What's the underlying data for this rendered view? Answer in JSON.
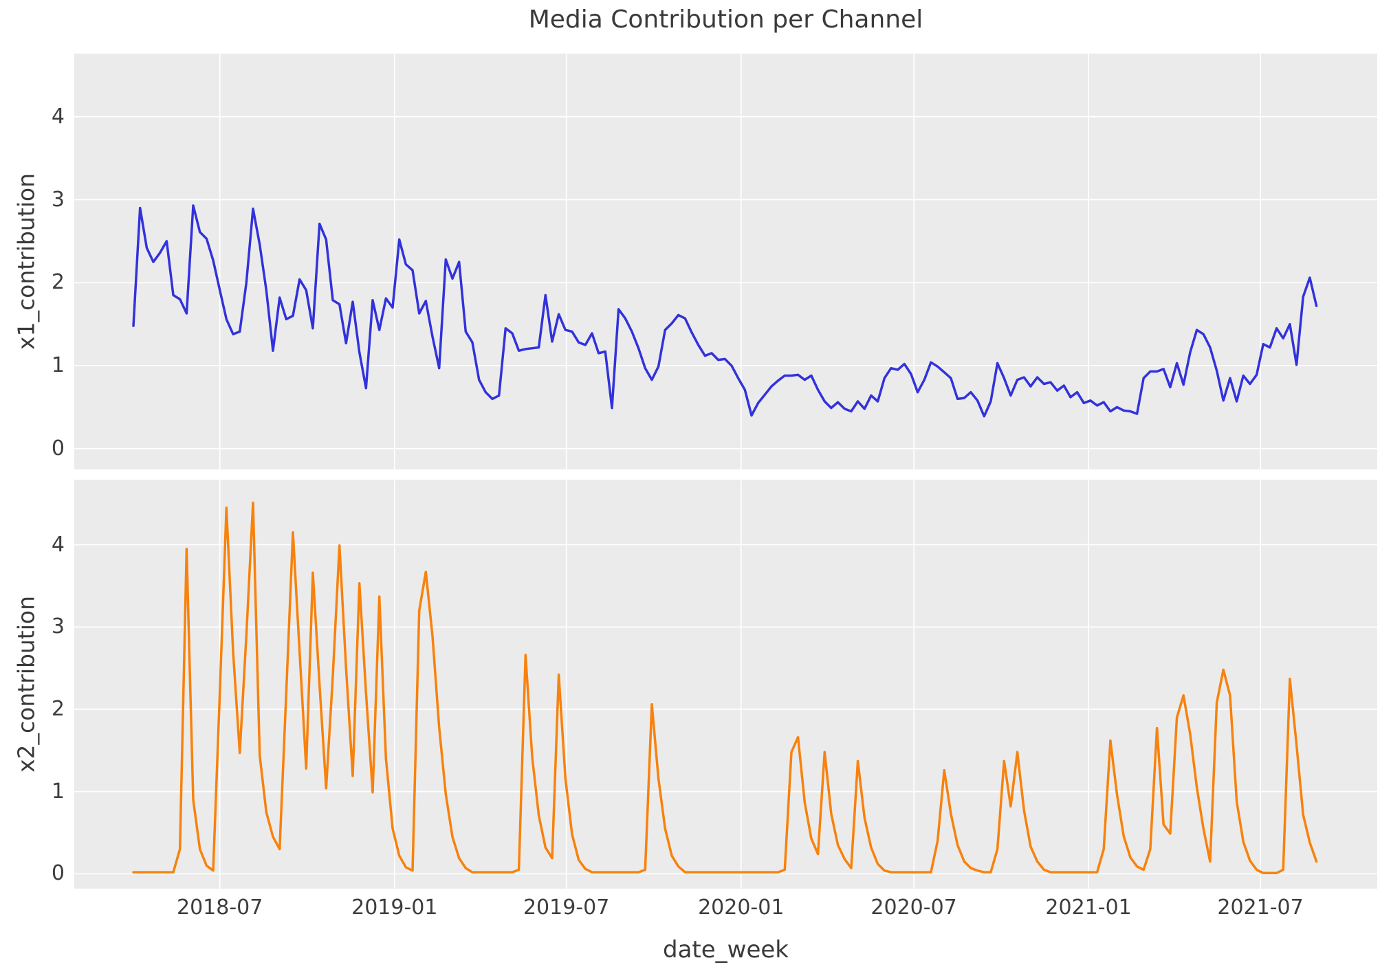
{
  "title": "Media Contribution per Channel",
  "x_axis": {
    "label": "date_week",
    "tick_labels": [
      "2018-07",
      "2019-01",
      "2019-07",
      "2020-01",
      "2020-07",
      "2021-01",
      "2021-07"
    ]
  },
  "chart_data": {
    "type": "line",
    "title": "Media Contribution per Channel",
    "xlabel": "date_week",
    "x_start": "2018-04-01",
    "x_end": "2021-08-29",
    "x_freq": "weekly",
    "n_points": 179,
    "grid": true,
    "background_color": "#ebebeb",
    "gridline_color": "#ffffff",
    "x_tick_labels": [
      "2018-07",
      "2019-01",
      "2019-07",
      "2020-01",
      "2020-07",
      "2021-01",
      "2021-07"
    ],
    "x_tick_week_index": [
      13.0,
      39.29,
      65.14,
      91.43,
      117.43,
      143.71,
      169.57
    ],
    "x_week_range": [
      -8.9,
      187.15
    ],
    "subplots": [
      {
        "ylabel": "x1_contribution",
        "yticks": [
          0,
          1,
          2,
          3,
          4
        ],
        "ylim": [
          -0.25,
          4.76
        ]
      },
      {
        "ylabel": "x2_contribution",
        "yticks": [
          0,
          1,
          2,
          3,
          4
        ],
        "ylim": [
          -0.18,
          4.79
        ]
      }
    ],
    "series": [
      {
        "name": "x1_contribution",
        "color": "#3232dc",
        "values": [
          1.48,
          2.9,
          2.42,
          2.25,
          2.36,
          2.5,
          1.85,
          1.8,
          1.63,
          2.93,
          2.61,
          2.53,
          2.27,
          1.91,
          1.56,
          1.38,
          1.41,
          2.0,
          2.89,
          2.46,
          1.91,
          1.18,
          1.82,
          1.56,
          1.6,
          2.04,
          1.91,
          1.45,
          2.71,
          2.52,
          1.79,
          1.74,
          1.27,
          1.77,
          1.16,
          0.73,
          1.79,
          1.43,
          1.81,
          1.7,
          2.52,
          2.22,
          2.15,
          1.63,
          1.78,
          1.35,
          0.97,
          2.28,
          2.05,
          2.25,
          1.41,
          1.28,
          0.83,
          0.68,
          0.6,
          0.64,
          1.45,
          1.39,
          1.18,
          1.2,
          1.21,
          1.22,
          1.85,
          1.29,
          1.62,
          1.43,
          1.41,
          1.28,
          1.25,
          1.39,
          1.15,
          1.17,
          0.49,
          1.68,
          1.57,
          1.41,
          1.21,
          0.97,
          0.83,
          0.99,
          1.43,
          1.51,
          1.61,
          1.57,
          1.4,
          1.25,
          1.12,
          1.15,
          1.07,
          1.08,
          1.0,
          0.85,
          0.71,
          0.4,
          0.55,
          0.65,
          0.75,
          0.82,
          0.88,
          0.88,
          0.89,
          0.83,
          0.88,
          0.71,
          0.57,
          0.49,
          0.56,
          0.48,
          0.45,
          0.57,
          0.48,
          0.64,
          0.57,
          0.85,
          0.97,
          0.95,
          1.02,
          0.9,
          0.68,
          0.83,
          1.04,
          0.99,
          0.92,
          0.85,
          0.6,
          0.61,
          0.68,
          0.58,
          0.39,
          0.57,
          1.03,
          0.85,
          0.64,
          0.83,
          0.86,
          0.75,
          0.86,
          0.78,
          0.8,
          0.7,
          0.76,
          0.62,
          0.68,
          0.55,
          0.58,
          0.52,
          0.56,
          0.45,
          0.5,
          0.46,
          0.45,
          0.42,
          0.85,
          0.93,
          0.93,
          0.96,
          0.74,
          1.03,
          0.77,
          1.16,
          1.43,
          1.38,
          1.22,
          0.94,
          0.58,
          0.85,
          0.57,
          0.88,
          0.78,
          0.89,
          1.26,
          1.22,
          1.45,
          1.33,
          1.5,
          1.01,
          1.83,
          2.06,
          1.72
        ]
      },
      {
        "name": "x2_contribution",
        "color": "#f7820d",
        "values": [
          0.02,
          0.02,
          0.02,
          0.02,
          0.02,
          0.02,
          0.02,
          0.3,
          3.95,
          0.9,
          0.3,
          0.1,
          0.04,
          2.2,
          4.45,
          2.7,
          1.47,
          2.9,
          4.51,
          1.44,
          0.75,
          0.45,
          0.3,
          2.2,
          4.15,
          2.7,
          1.28,
          3.66,
          2.3,
          1.04,
          2.4,
          3.99,
          2.5,
          1.19,
          3.53,
          2.2,
          0.99,
          3.37,
          1.4,
          0.55,
          0.22,
          0.08,
          0.04,
          3.2,
          3.67,
          2.89,
          1.78,
          0.97,
          0.45,
          0.19,
          0.07,
          0.02,
          0.02,
          0.02,
          0.02,
          0.02,
          0.02,
          0.02,
          0.05,
          2.66,
          1.42,
          0.71,
          0.32,
          0.19,
          2.42,
          1.16,
          0.48,
          0.17,
          0.06,
          0.02,
          0.02,
          0.02,
          0.02,
          0.02,
          0.02,
          0.02,
          0.02,
          0.05,
          2.06,
          1.16,
          0.55,
          0.22,
          0.09,
          0.02,
          0.02,
          0.02,
          0.02,
          0.02,
          0.02,
          0.02,
          0.02,
          0.02,
          0.02,
          0.02,
          0.02,
          0.02,
          0.02,
          0.02,
          0.05,
          1.48,
          1.66,
          0.87,
          0.43,
          0.24,
          1.48,
          0.73,
          0.35,
          0.18,
          0.07,
          1.37,
          0.68,
          0.32,
          0.12,
          0.04,
          0.02,
          0.02,
          0.02,
          0.02,
          0.02,
          0.02,
          0.02,
          0.4,
          1.26,
          0.73,
          0.35,
          0.15,
          0.07,
          0.04,
          0.02,
          0.02,
          0.3,
          1.37,
          0.82,
          1.48,
          0.77,
          0.33,
          0.15,
          0.05,
          0.02,
          0.02,
          0.02,
          0.02,
          0.02,
          0.02,
          0.02,
          0.02,
          0.3,
          1.62,
          0.96,
          0.46,
          0.2,
          0.09,
          0.05,
          0.3,
          1.77,
          0.6,
          0.49,
          1.9,
          2.17,
          1.7,
          1.05,
          0.55,
          0.15,
          2.08,
          2.48,
          2.17,
          0.88,
          0.39,
          0.16,
          0.05,
          0.01,
          0.01,
          0.01,
          0.05,
          2.37,
          1.57,
          0.72,
          0.38,
          0.15
        ]
      }
    ]
  }
}
